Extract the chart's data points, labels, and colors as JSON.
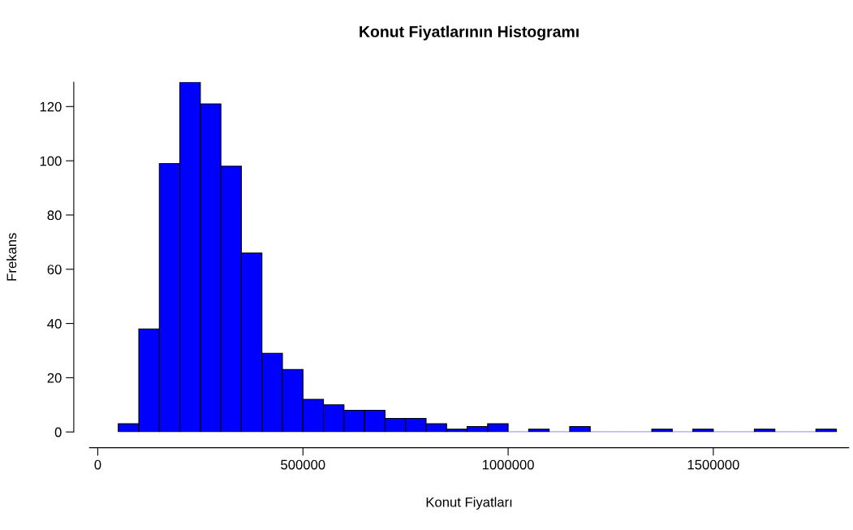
{
  "chart_data": {
    "type": "histogram",
    "title": "Konut Fiyatlarının Histogramı",
    "xlabel": "Konut Fiyatları",
    "ylabel": "Frekans",
    "bins": [
      50000,
      100000,
      150000,
      200000,
      250000,
      300000,
      350000,
      400000,
      450000,
      500000,
      550000,
      600000,
      650000,
      700000,
      750000,
      800000,
      850000,
      900000,
      950000,
      1000000,
      1050000,
      1100000,
      1150000,
      1200000,
      1250000,
      1300000,
      1350000,
      1400000,
      1450000,
      1500000,
      1550000,
      1600000,
      1650000,
      1700000,
      1750000,
      1800000
    ],
    "values": [
      3,
      38,
      99,
      129,
      121,
      98,
      66,
      29,
      23,
      12,
      10,
      8,
      8,
      5,
      5,
      3,
      1,
      2,
      3,
      0,
      1,
      0,
      2,
      0,
      0,
      0,
      1,
      0,
      1,
      0,
      0,
      1,
      0,
      0,
      1
    ],
    "color": "#0000ff",
    "xlim": [
      -20000,
      1830000
    ],
    "xticks": [
      0,
      500000,
      1000000,
      1500000
    ],
    "ylim": [
      0,
      129
    ],
    "yticks": [
      0,
      20,
      40,
      60,
      80,
      100,
      120
    ],
    "grid": false
  }
}
